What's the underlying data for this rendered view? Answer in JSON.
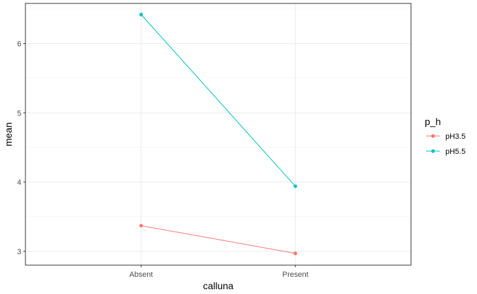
{
  "chart_data": {
    "type": "line",
    "categories": [
      "Absent",
      "Present"
    ],
    "series": [
      {
        "name": "pH3.5",
        "values": [
          3.37,
          2.97
        ],
        "color": "#F8766D"
      },
      {
        "name": "pH5.5",
        "values": [
          6.42,
          3.94
        ],
        "color": "#00BFC4"
      }
    ],
    "xlabel": "calluna",
    "ylabel": "mean",
    "yticks": [
      3,
      4,
      5,
      6
    ],
    "ylim": [
      2.8,
      6.58
    ],
    "grid": true,
    "legend": {
      "title": "p_h",
      "position": "right"
    }
  }
}
